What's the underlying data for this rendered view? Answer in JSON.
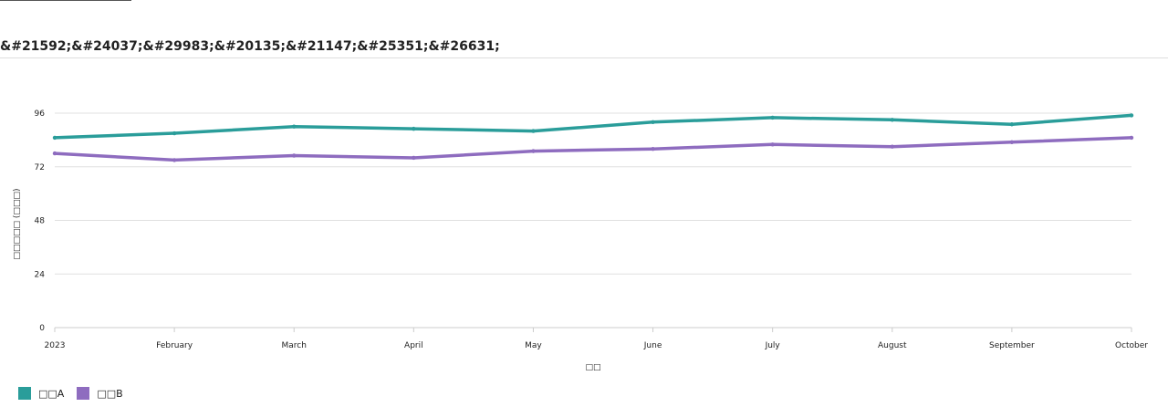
{
  "page": {
    "title": "&#21592;&#24037;&#29983;&#20135;&#21147;&#25351;&#26631;"
  },
  "colors": {
    "series_a": "#2a9d9a",
    "series_b": "#8e6cbf",
    "grid": "#e0e0e0",
    "axis": "#cccccc"
  },
  "chart_data": {
    "type": "line",
    "title": "&#21592;&#24037;&#29983;&#20135;&#21147;&#25351;&#26631;",
    "xlabel": "□□",
    "ylabel": "□□□□□ (□□□)",
    "categories": [
      "2023",
      "February",
      "March",
      "April",
      "May",
      "June",
      "July",
      "August",
      "September",
      "October"
    ],
    "y_ticks": [
      0,
      24,
      48,
      72,
      96
    ],
    "ylim": [
      0,
      96
    ],
    "grid": true,
    "legend_position": "bottom-left",
    "series": [
      {
        "name": "□□A",
        "color": "#2a9d9a",
        "values": [
          85,
          87,
          90,
          89,
          88,
          92,
          94,
          93,
          91,
          95
        ]
      },
      {
        "name": "□□B",
        "color": "#8e6cbf",
        "values": [
          78,
          75,
          77,
          76,
          79,
          80,
          82,
          81,
          83,
          85
        ]
      }
    ]
  }
}
